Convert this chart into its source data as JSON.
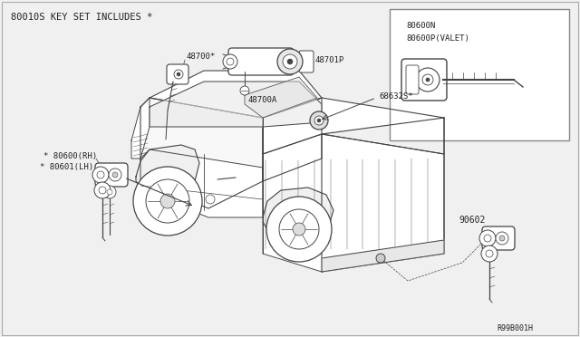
{
  "bg_color": "#f0f0f0",
  "line_color": "#444444",
  "text_color": "#222222",
  "title": "80010S KEY SET INCLUDES *",
  "label_48700": "48700*",
  "label_48701P": "48701P",
  "label_48700A": "48700A",
  "label_68632S": "68632S*",
  "label_80600RH": "* 80600(RH)",
  "label_80601LH": "* 80601(LH)",
  "label_90602": "90602",
  "label_80600N": "80600N",
  "label_80600P": "80600P(VALET)",
  "label_R99B001H": "R99B001H",
  "figsize": [
    6.4,
    3.72
  ],
  "dpi": 100
}
